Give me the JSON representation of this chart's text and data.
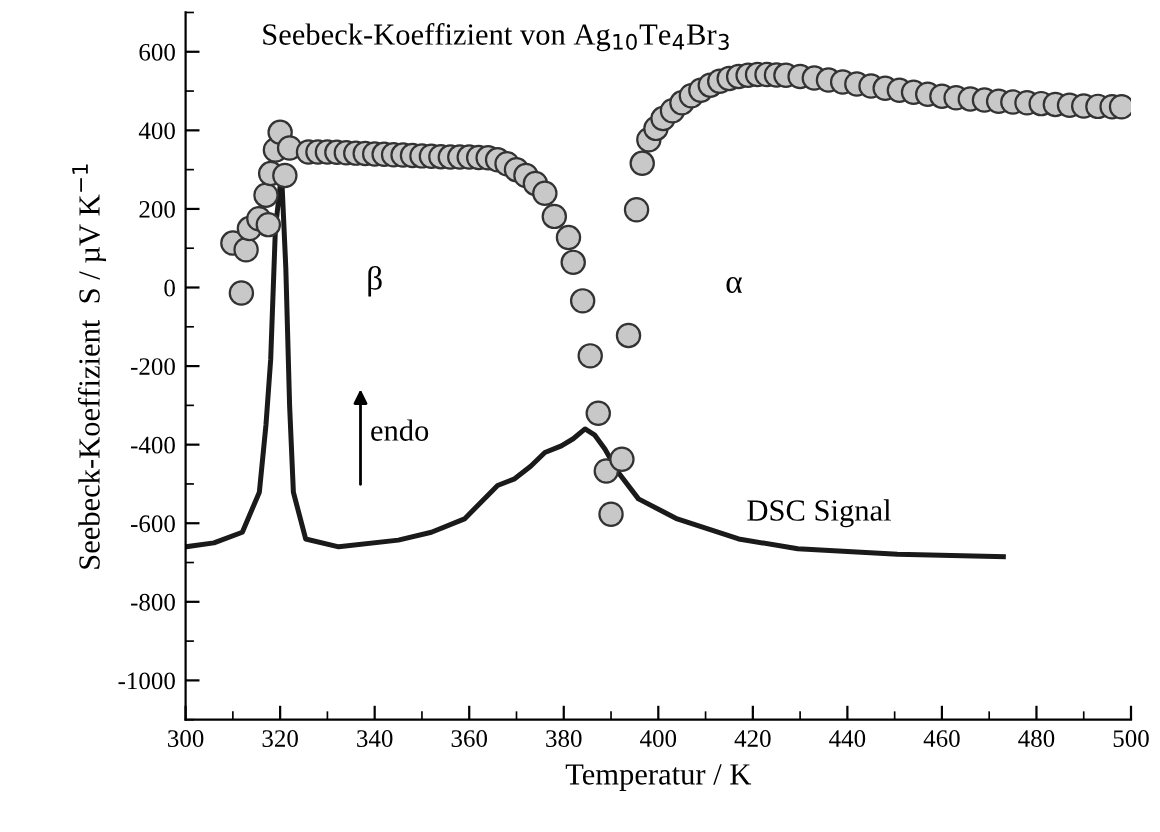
{
  "chart_data": {
    "type": "scatter",
    "title": "Seebeck-Koeffizient von Ag$_{10}$Te$_{4}$Br$_{3}$",
    "xlabel": "Temperatur / K",
    "ylabel": "Seebeck-Koeffizient  S / µV K$^{−1}$",
    "xlim": [
      300,
      500
    ],
    "ylim": [
      -1100,
      700
    ],
    "xticks": [
      300,
      320,
      340,
      360,
      380,
      400,
      420,
      440,
      460,
      480,
      500
    ],
    "yticks": [
      -1000,
      -800,
      -600,
      -400,
      -200,
      0,
      200,
      400,
      600
    ],
    "grid": false,
    "legend": false,
    "series": [
      {
        "marker": "circle",
        "color": "#c8c8c8",
        "x": [
          310,
          311.8,
          312.8,
          313.5,
          315.5,
          317,
          317.5,
          318,
          319,
          320,
          321,
          322,
          326,
          328,
          330,
          332,
          334,
          336,
          338,
          340,
          342,
          344,
          346,
          348,
          350,
          352,
          354,
          356,
          358,
          360,
          362,
          364,
          366,
          368,
          370,
          372,
          374,
          376,
          378,
          381,
          382,
          384,
          385.6,
          387.3,
          389,
          390,
          392.3,
          393.7,
          395.4,
          396.6,
          398,
          399.5,
          401,
          403,
          405,
          407,
          409,
          411,
          413,
          415,
          417,
          419,
          421,
          423,
          425,
          427,
          430,
          433,
          436,
          439,
          442,
          445,
          448,
          451,
          454,
          457,
          460,
          463,
          466,
          469,
          472,
          475,
          478,
          481,
          484,
          487,
          490,
          493,
          496,
          498
        ],
        "values": [
          113,
          -14,
          96,
          150,
          175,
          235,
          160,
          290,
          350,
          395,
          285,
          355,
          345,
          345,
          345,
          344,
          343,
          342,
          341,
          340,
          339,
          338,
          337,
          336,
          335,
          334,
          333,
          332,
          332,
          332,
          331,
          330,
          325,
          315,
          300,
          285,
          265,
          240,
          181,
          127,
          64,
          -34,
          -174,
          -320,
          -467,
          -577,
          -437,
          -122,
          198,
          316,
          376,
          405,
          430,
          450,
          470,
          488,
          502,
          515,
          525,
          532,
          537,
          540,
          542,
          542,
          541,
          540,
          537,
          533,
          528,
          523,
          518,
          513,
          507,
          502,
          497,
          492,
          487,
          483,
          480,
          477,
          474,
          472,
          470,
          468,
          466,
          464,
          462,
          461,
          460,
          460
        ]
      },
      {
        "type": "line",
        "name": "DSC Signal",
        "color": "#1a1a1a",
        "line_style": "solid",
        "marker": "none",
        "x": [
          300,
          306,
          312,
          315.6,
          317,
          318,
          319,
          320.3,
          321.2,
          322,
          322.8,
          325.4,
          332.4,
          345,
          352,
          359,
          366,
          369.6,
          373,
          376,
          379.5,
          382,
          384.5,
          386.5,
          388.7,
          391.5,
          395.8,
          404,
          417,
          429.5,
          450.6,
          473
        ],
        "values": [
          -660,
          -650,
          -623,
          -521,
          -350,
          -183,
          150,
          290,
          50,
          -300,
          -521,
          -640,
          -660,
          -643,
          -623,
          -589,
          -504,
          -487,
          -455,
          -420,
          -403,
          -385,
          -360,
          -375,
          -411,
          -470,
          -538,
          -589,
          -640,
          -665,
          -679,
          -685
        ]
      }
    ],
    "annotations": [
      "β",
      "α",
      "endo"
    ]
  }
}
